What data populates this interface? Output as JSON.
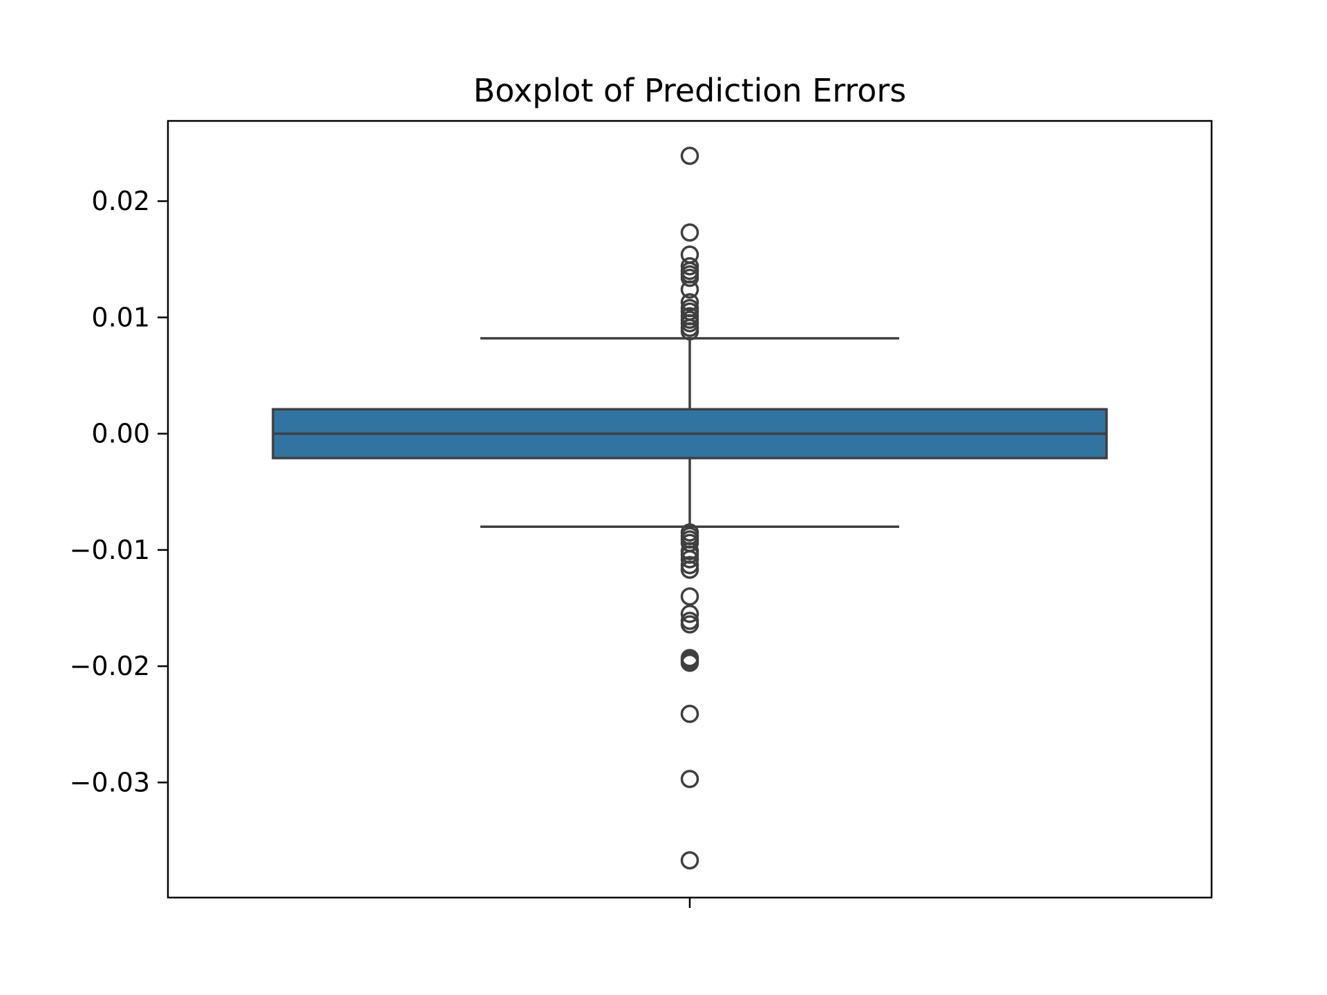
{
  "chart_data": {
    "type": "boxplot",
    "title": "Boxplot of Prediction Errors",
    "xlabel": "",
    "ylabel": "",
    "ylim": [
      -0.0399,
      0.0269
    ],
    "yticks": [
      {
        "value": 0.02,
        "label": "0.02"
      },
      {
        "value": 0.01,
        "label": "0.01"
      },
      {
        "value": 0.0,
        "label": "0.00"
      },
      {
        "value": -0.01,
        "label": "−0.01"
      },
      {
        "value": -0.02,
        "label": "−0.02"
      },
      {
        "value": -0.03,
        "label": "−0.03"
      }
    ],
    "grid": false,
    "box": {
      "q1": -0.0021,
      "median": 0.0,
      "q3": 0.0021,
      "whisker_low": -0.008,
      "whisker_high": 0.0082,
      "color": "#3274a1",
      "edge_color": "#3f3f3f"
    },
    "outliers": [
      0.0239,
      0.0173,
      0.0154,
      0.0144,
      0.014,
      0.0137,
      0.0134,
      0.0124,
      0.0113,
      0.0108,
      0.0105,
      0.0101,
      0.0098,
      0.0095,
      0.0091,
      0.0088,
      -0.0085,
      -0.0088,
      -0.0091,
      -0.0094,
      -0.0101,
      -0.0104,
      -0.0108,
      -0.0113,
      -0.0117,
      -0.014,
      -0.0155,
      -0.0161,
      -0.0164,
      -0.0193,
      -0.0195,
      -0.0197,
      -0.0241,
      -0.0297,
      -0.0367
    ]
  }
}
